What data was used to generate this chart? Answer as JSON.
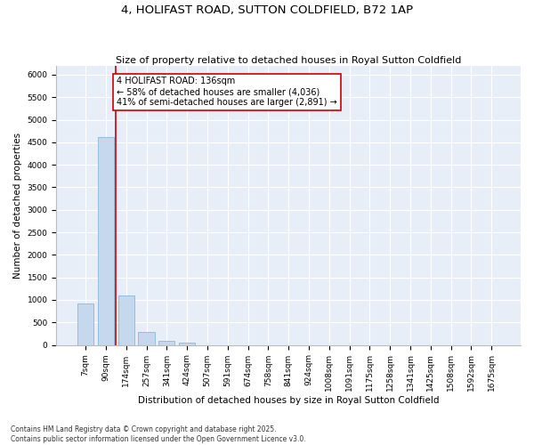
{
  "title": "4, HOLIFAST ROAD, SUTTON COLDFIELD, B72 1AP",
  "subtitle": "Size of property relative to detached houses in Royal Sutton Coldfield",
  "xlabel": "Distribution of detached houses by size in Royal Sutton Coldfield",
  "ylabel": "Number of detached properties",
  "bar_color": "#c5d8ee",
  "bar_edge_color": "#7aaed6",
  "background_color": "#e8eef8",
  "vline_color": "#cc0000",
  "annotation_text": "4 HOLIFAST ROAD: 136sqm\n← 58% of detached houses are smaller (4,036)\n41% of semi-detached houses are larger (2,891) →",
  "annotation_box_color": "#cc0000",
  "categories": [
    "7sqm",
    "90sqm",
    "174sqm",
    "257sqm",
    "341sqm",
    "424sqm",
    "507sqm",
    "591sqm",
    "674sqm",
    "758sqm",
    "841sqm",
    "924sqm",
    "1008sqm",
    "1091sqm",
    "1175sqm",
    "1258sqm",
    "1341sqm",
    "1425sqm",
    "1508sqm",
    "1592sqm",
    "1675sqm"
  ],
  "values": [
    920,
    4620,
    1090,
    295,
    85,
    60,
    0,
    0,
    0,
    0,
    0,
    0,
    0,
    0,
    0,
    0,
    0,
    0,
    0,
    0,
    0
  ],
  "ylim": [
    0,
    6200
  ],
  "yticks": [
    0,
    500,
    1000,
    1500,
    2000,
    2500,
    3000,
    3500,
    4000,
    4500,
    5000,
    5500,
    6000
  ],
  "footer": "Contains HM Land Registry data © Crown copyright and database right 2025.\nContains public sector information licensed under the Open Government Licence v3.0.",
  "title_fontsize": 9.5,
  "subtitle_fontsize": 8,
  "xlabel_fontsize": 7.5,
  "ylabel_fontsize": 7.5,
  "tick_fontsize": 6.5,
  "annotation_fontsize": 7,
  "footer_fontsize": 5.5,
  "vline_position": 1.48
}
